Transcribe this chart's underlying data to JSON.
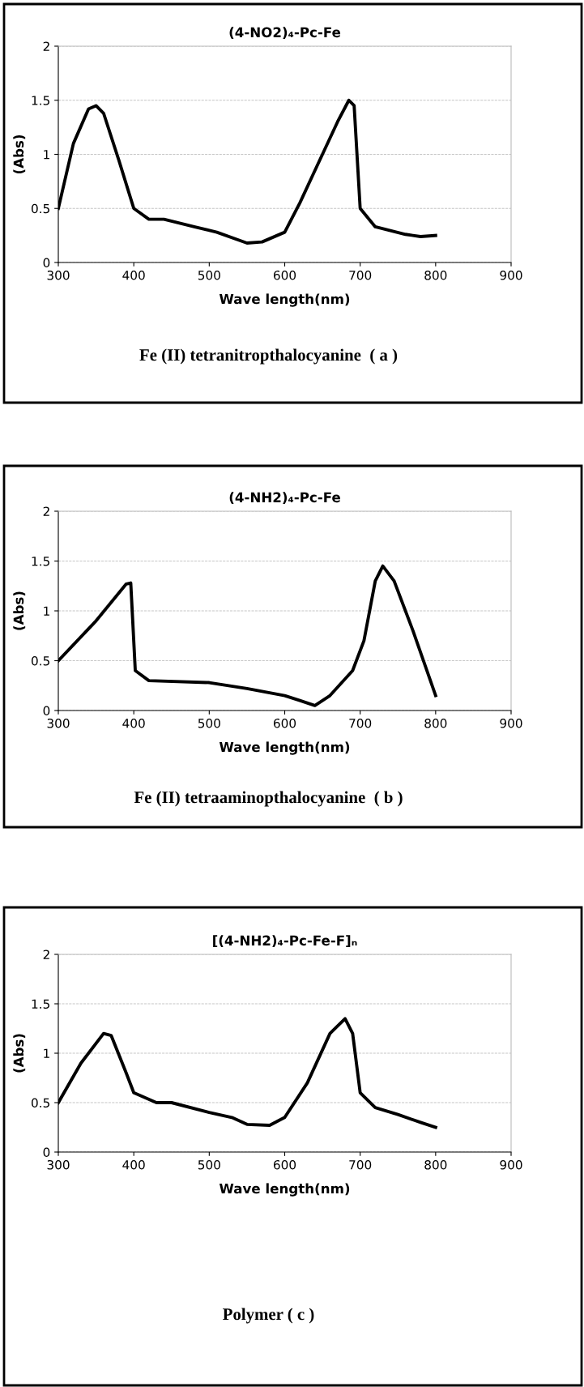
{
  "chart_data": [
    {
      "type": "line",
      "title": "(4-NO2)₄-Pc-Fe",
      "xlabel": "Wave length(nm)",
      "ylabel": "(Abs)",
      "annotations": [
        "Fe (II) tetranitropthalocyanine  ( a )"
      ],
      "x": [
        300,
        320,
        340,
        350,
        360,
        380,
        400,
        420,
        440,
        480,
        510,
        550,
        570,
        600,
        620,
        640,
        670,
        685,
        692,
        700,
        720,
        760,
        780,
        800
      ],
      "series": [
        {
          "color": "#000000",
          "values": [
            0.5,
            1.1,
            1.42,
            1.45,
            1.38,
            0.95,
            0.5,
            0.4,
            0.4,
            0.33,
            0.28,
            0.18,
            0.19,
            0.28,
            0.55,
            0.85,
            1.3,
            1.5,
            1.45,
            0.5,
            0.33,
            0.26,
            0.24,
            0.25
          ]
        }
      ],
      "xlim": [
        300,
        900
      ],
      "ylim": [
        0,
        2
      ],
      "xticks": [
        300,
        400,
        500,
        600,
        700,
        800,
        900
      ],
      "yticks": [
        0,
        0.5,
        1,
        1.5,
        2
      ],
      "grid": "y",
      "line_style": "solid"
    },
    {
      "type": "line",
      "title": "(4-NH2)₄-Pc-Fe",
      "xlabel": "Wave length(nm)",
      "ylabel": "(Abs)",
      "annotations": [
        "Fe (II) tetraaminopthalocyanine  ( b )"
      ],
      "x": [
        300,
        350,
        390,
        396,
        402,
        420,
        500,
        550,
        600,
        620,
        640,
        660,
        690,
        705,
        720,
        730,
        745,
        770,
        800
      ],
      "series": [
        {
          "color": "#000000",
          "values": [
            0.5,
            0.9,
            1.27,
            1.28,
            0.4,
            0.3,
            0.28,
            0.22,
            0.15,
            0.1,
            0.05,
            0.15,
            0.4,
            0.7,
            1.3,
            1.45,
            1.3,
            0.8,
            0.15
          ]
        }
      ],
      "xlim": [
        300,
        900
      ],
      "ylim": [
        0,
        2
      ],
      "xticks": [
        300,
        400,
        500,
        600,
        700,
        800,
        900
      ],
      "yticks": [
        0,
        0.5,
        1,
        1.5,
        2
      ],
      "grid": "y",
      "line_style": "solid"
    },
    {
      "type": "line",
      "title": "[(4-NH2)₄-Pc-Fe-F]ₙ",
      "xlabel": "Wave length(nm)",
      "ylabel": "(Abs)",
      "annotations": [
        "Polymer ( c )"
      ],
      "x": [
        300,
        330,
        360,
        370,
        390,
        400,
        430,
        450,
        500,
        530,
        550,
        580,
        600,
        630,
        660,
        680,
        690,
        700,
        720,
        750,
        780,
        800
      ],
      "series": [
        {
          "color": "#000000",
          "values": [
            0.5,
            0.9,
            1.2,
            1.18,
            0.8,
            0.6,
            0.5,
            0.5,
            0.4,
            0.35,
            0.28,
            0.27,
            0.35,
            0.7,
            1.2,
            1.35,
            1.2,
            0.6,
            0.45,
            0.38,
            0.3,
            0.25
          ]
        }
      ],
      "xlim": [
        300,
        900
      ],
      "ylim": [
        0,
        2
      ],
      "xticks": [
        300,
        400,
        500,
        600,
        700,
        800,
        900
      ],
      "yticks": [
        0,
        0.5,
        1,
        1.5,
        2
      ],
      "grid": "y",
      "line_style": "solid"
    }
  ]
}
